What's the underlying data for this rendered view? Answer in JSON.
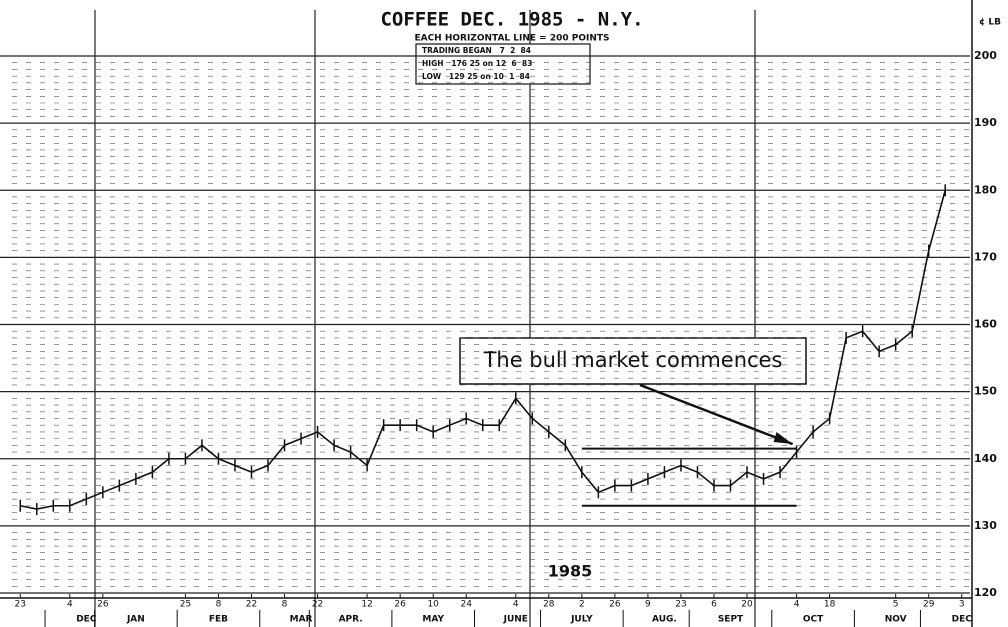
{
  "chart_data": {
    "type": "line",
    "title": "COFFEE DEC. 1985 - N.Y.",
    "subtitle": "EACH HORIZONTAL LINE = 200 POINTS",
    "info": [
      "TRADING BEGAN   7  2  84",
      "HIGH   176 25 on 12  6  83",
      "LOW   129 25 on 10  1  84"
    ],
    "y_label": "¢ LB",
    "year_label": "1985",
    "annotation": "The bull market commences",
    "annotation_target": 47,
    "support_lines": [
      {
        "y": 141.5,
        "start": 34,
        "end": 47
      },
      {
        "y": 133,
        "start": 34,
        "end": 47
      }
    ],
    "categories": [
      "23",
      null,
      null,
      "4",
      null,
      "26",
      null,
      null,
      null,
      null,
      "25",
      null,
      "8",
      null,
      "22",
      null,
      "8",
      null,
      "22",
      null,
      null,
      "12",
      null,
      "26",
      null,
      "10",
      null,
      "24",
      null,
      null,
      "4",
      null,
      "28",
      null,
      "2",
      null,
      "26",
      null,
      "9",
      null,
      "23",
      null,
      "6",
      null,
      "20",
      null,
      null,
      "4",
      null,
      "18",
      null,
      null,
      null,
      "5",
      null,
      "29",
      null,
      "3"
    ],
    "months": [
      null,
      null,
      null,
      null,
      "DEC",
      null,
      null,
      "JAN",
      null,
      null,
      null,
      null,
      "FEB",
      null,
      null,
      null,
      null,
      "MAR",
      null,
      null,
      "APR.",
      null,
      null,
      null,
      null,
      "MAY",
      null,
      null,
      null,
      null,
      "JUNE",
      null,
      null,
      null,
      "JULY",
      null,
      null,
      null,
      null,
      "AUG.",
      null,
      null,
      null,
      "SEPT",
      null,
      null,
      null,
      null,
      "OCT",
      null,
      null,
      null,
      null,
      "NOV",
      null,
      null,
      null,
      "DEC"
    ],
    "series": [
      {
        "name": "Coffee Dec. 1985",
        "color": "#111111",
        "values": [
          133,
          132.5,
          133,
          133,
          134,
          135,
          136,
          137,
          138,
          140,
          140,
          142,
          140,
          139,
          138,
          139,
          142,
          143,
          144,
          142,
          141,
          139,
          145,
          145,
          145,
          144,
          145,
          146,
          145,
          145,
          149,
          146,
          144,
          142,
          138,
          135,
          136,
          136,
          137,
          138,
          139,
          138,
          136,
          136,
          138,
          137,
          138,
          141,
          144,
          146,
          158,
          159,
          156,
          157,
          159,
          171,
          180,
          null
        ]
      }
    ],
    "ylim": [
      120,
      200
    ],
    "yticks": [
      120,
      130,
      140,
      150,
      160,
      170,
      180,
      190,
      200
    ],
    "grid": true
  }
}
